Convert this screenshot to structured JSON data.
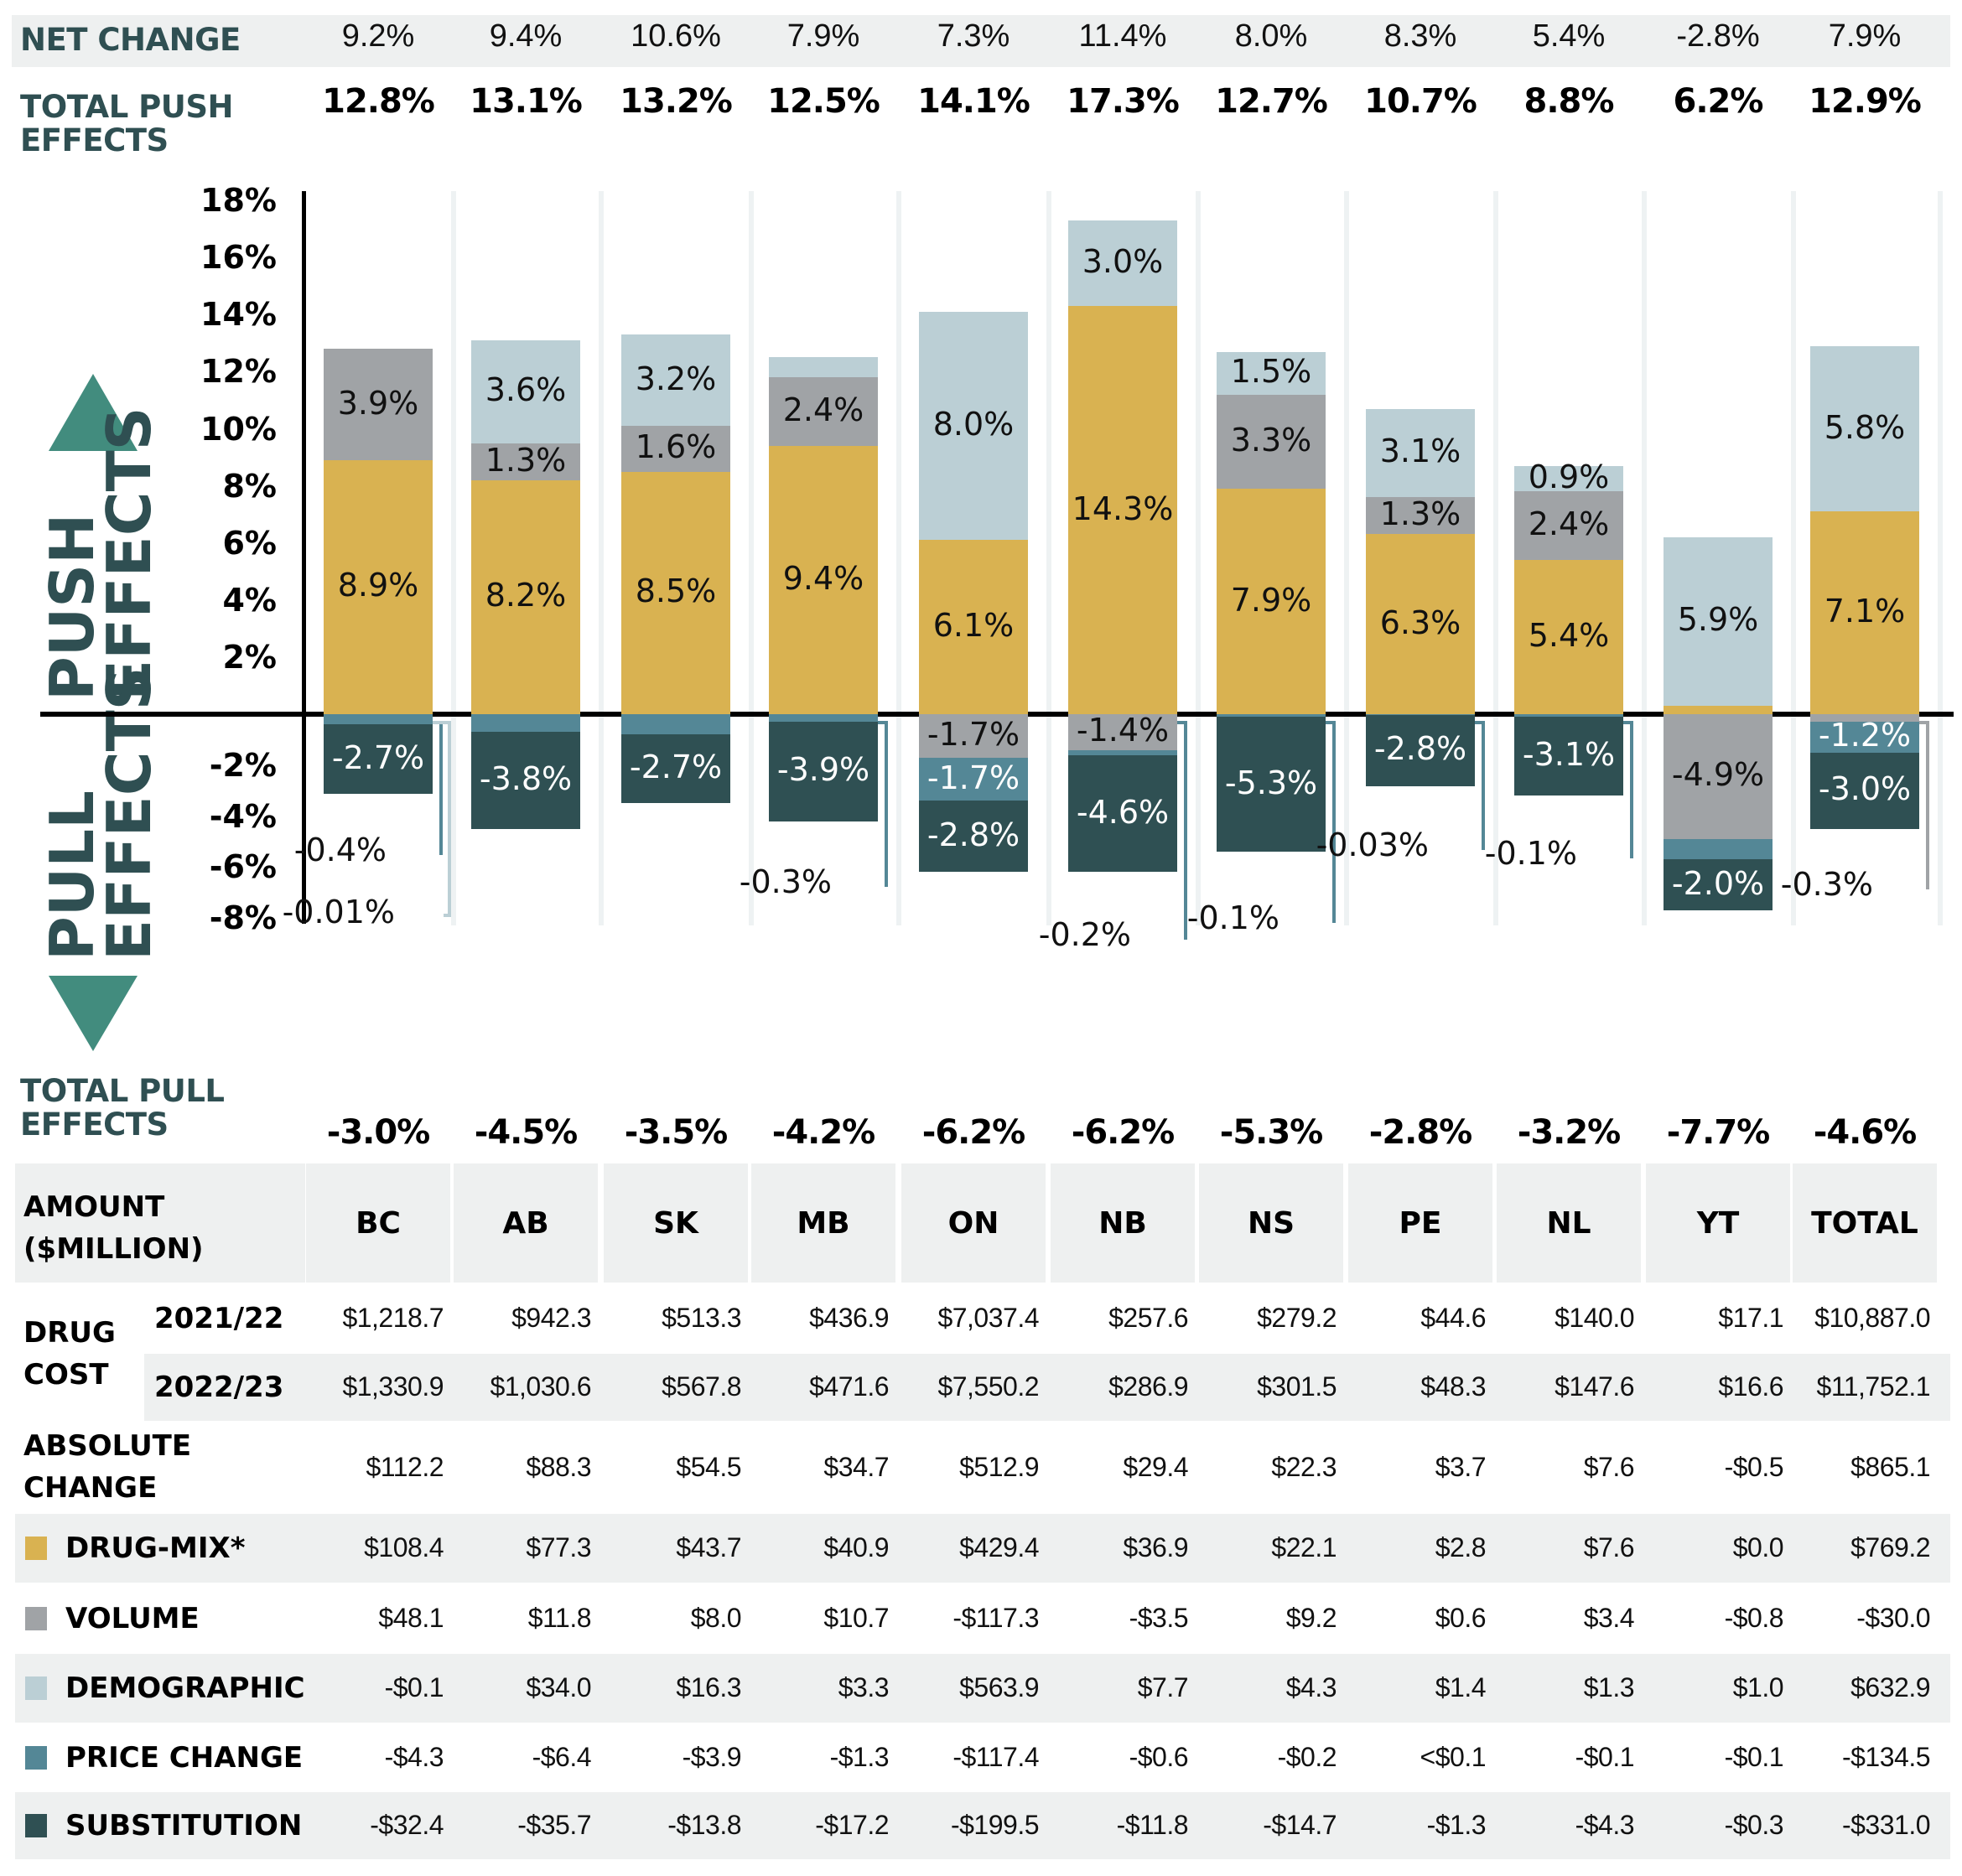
{
  "colors": {
    "drug_mix": "#d9b251",
    "volume": "#a0a3a6",
    "demographic": "#bbcfd5",
    "price_change": "#548796",
    "substitution": "#2f5053",
    "label_dark": "#2f4f52",
    "arrow": "#428c7e"
  },
  "labels": {
    "net_change": "NET CHANGE",
    "total_push_line1": "TOTAL PUSH",
    "total_push_line2": "EFFECTS",
    "total_pull_line1": "TOTAL PULL",
    "total_pull_line2": "EFFECTS",
    "push_effects_line1": "PUSH",
    "push_effects_line2": "EFFECTS",
    "pull_effects_line1": "PULL",
    "pull_effects_line2": "EFFECTS"
  },
  "chart_data": {
    "type": "bar",
    "stacked": true,
    "diverging": true,
    "categories": [
      "BC",
      "AB",
      "SK",
      "MB",
      "ON",
      "NB",
      "NS",
      "PE",
      "NL",
      "YT",
      "TOTAL"
    ],
    "ylim": [
      -8,
      18
    ],
    "yticks": [
      "18%",
      "16%",
      "14%",
      "12%",
      "10%",
      "8%",
      "6%",
      "4%",
      "2%",
      "-2%",
      "-4%",
      "-6%",
      "-8%"
    ],
    "ytick_values": [
      18,
      16,
      14,
      12,
      10,
      8,
      6,
      4,
      2,
      -2,
      -4,
      -6,
      -8
    ],
    "net_change": [
      "9.2%",
      "9.4%",
      "10.6%",
      "7.9%",
      "7.3%",
      "11.4%",
      "8.0%",
      "8.3%",
      "5.4%",
      "-2.8%",
      "7.9%"
    ],
    "total_push": [
      "12.8%",
      "13.1%",
      "13.2%",
      "12.5%",
      "14.1%",
      "17.3%",
      "12.7%",
      "10.7%",
      "8.8%",
      "6.2%",
      "12.9%"
    ],
    "total_pull": [
      "-3.0%",
      "-4.5%",
      "-3.5%",
      "-4.2%",
      "-6.2%",
      "-6.2%",
      "-5.3%",
      "-2.8%",
      "-3.2%",
      "-7.7%",
      "-4.6%"
    ],
    "series": [
      {
        "name": "Drug-mix",
        "key": "drug_mix",
        "values": [
          8.9,
          8.2,
          8.5,
          9.4,
          6.1,
          14.3,
          7.9,
          6.3,
          5.4,
          0.3,
          7.1
        ],
        "labels": [
          "8.9%",
          "8.2%",
          "8.5%",
          "9.4%",
          "6.1%",
          "14.3%",
          "7.9%",
          "6.3%",
          "5.4%",
          "0.3%",
          "7.1%"
        ]
      },
      {
        "name": "Volume",
        "key": "volume",
        "values": [
          3.9,
          1.3,
          1.6,
          2.4,
          -1.7,
          -1.4,
          3.3,
          1.3,
          2.4,
          -4.9,
          -0.3
        ],
        "labels": [
          "3.9%",
          "1.3%",
          "1.6%",
          "2.4%",
          "-1.7%",
          "-1.4%",
          "3.3%",
          "1.3%",
          "2.4%",
          "-4.9%",
          "-0.3%"
        ]
      },
      {
        "name": "Demographic",
        "key": "demographic",
        "values": [
          -0.01,
          3.6,
          3.2,
          0.7,
          8.0,
          3.0,
          1.5,
          3.1,
          0.9,
          5.9,
          5.8
        ],
        "labels": [
          "-0.01%",
          "3.6%",
          "3.2%",
          "0.7%",
          "8.0%",
          "3.0%",
          "1.5%",
          "3.1%",
          "0.9%",
          "5.9%",
          "5.8%"
        ]
      },
      {
        "name": "Price change",
        "key": "price_change",
        "values": [
          -0.4,
          -0.7,
          -0.8,
          -0.3,
          -1.7,
          -0.2,
          -0.1,
          -0.03,
          -0.1,
          -0.8,
          -1.2
        ],
        "labels": [
          "-0.4%",
          "-0.7%",
          "-0.8%",
          "-0.3%",
          "-1.7%",
          "-0.2%",
          "-0.1%",
          "-0.03%",
          "-0.1%",
          "-0.8%",
          "-1.2%"
        ]
      },
      {
        "name": "Substitution",
        "key": "substitution",
        "values": [
          -2.7,
          -3.8,
          -2.7,
          -3.9,
          -2.8,
          -4.6,
          -5.3,
          -2.8,
          -3.1,
          -2.0,
          -3.0
        ],
        "labels": [
          "-2.7%",
          "-3.8%",
          "-2.7%",
          "-3.9%",
          "-2.8%",
          "-4.6%",
          "-5.3%",
          "-2.8%",
          "-3.1%",
          "-2.0%",
          "-3.0%"
        ]
      }
    ]
  },
  "table": {
    "corner_line1": "AMOUNT",
    "corner_line2": "($MILLION)",
    "columns": [
      "BC",
      "AB",
      "SK",
      "MB",
      "ON",
      "NB",
      "NS",
      "PE",
      "NL",
      "YT",
      "TOTAL"
    ],
    "drug_cost_label_line1": "DRUG",
    "drug_cost_label_line2": "COST",
    "rows": [
      {
        "label": "2021/22",
        "values": [
          "$1,218.7",
          "$942.3",
          "$513.3",
          "$436.9",
          "$7,037.4",
          "$257.6",
          "$279.2",
          "$44.6",
          "$140.0",
          "$17.1",
          "$10,887.0"
        ]
      },
      {
        "label": "2022/23",
        "values": [
          "$1,330.9",
          "$1,030.6",
          "$567.8",
          "$471.6",
          "$7,550.2",
          "$286.9",
          "$301.5",
          "$48.3",
          "$147.6",
          "$16.6",
          "$11,752.1"
        ]
      },
      {
        "label_line1": "ABSOLUTE",
        "label_line2": "CHANGE",
        "values": [
          "$112.2",
          "$88.3",
          "$54.5",
          "$34.7",
          "$512.9",
          "$29.4",
          "$22.3",
          "$3.7",
          "$7.6",
          "-$0.5",
          "$865.1"
        ]
      },
      {
        "label": "DRUG-MIX*",
        "key": "drug_mix",
        "values": [
          "$108.4",
          "$77.3",
          "$43.7",
          "$40.9",
          "$429.4",
          "$36.9",
          "$22.1",
          "$2.8",
          "$7.6",
          "$0.0",
          "$769.2"
        ]
      },
      {
        "label": "VOLUME",
        "key": "volume",
        "values": [
          "$48.1",
          "$11.8",
          "$8.0",
          "$10.7",
          "-$117.3",
          "-$3.5",
          "$9.2",
          "$0.6",
          "$3.4",
          "-$0.8",
          "-$30.0"
        ]
      },
      {
        "label": "DEMOGRAPHIC",
        "key": "demographic",
        "values": [
          "-$0.1",
          "$34.0",
          "$16.3",
          "$3.3",
          "$563.9",
          "$7.7",
          "$4.3",
          "$1.4",
          "$1.3",
          "$1.0",
          "$632.9"
        ]
      },
      {
        "label": "PRICE CHANGE",
        "key": "price_change",
        "values": [
          "-$4.3",
          "-$6.4",
          "-$3.9",
          "-$1.3",
          "-$117.4",
          "-$0.6",
          "-$0.2",
          "<$0.1",
          "-$0.1",
          "-$0.1",
          "-$134.5"
        ]
      },
      {
        "label": "SUBSTITUTION",
        "key": "substitution",
        "values": [
          "-$32.4",
          "-$35.7",
          "-$13.8",
          "-$17.2",
          "-$199.5",
          "-$11.8",
          "-$14.7",
          "-$1.3",
          "-$4.3",
          "-$0.3",
          "-$331.0"
        ]
      }
    ]
  }
}
